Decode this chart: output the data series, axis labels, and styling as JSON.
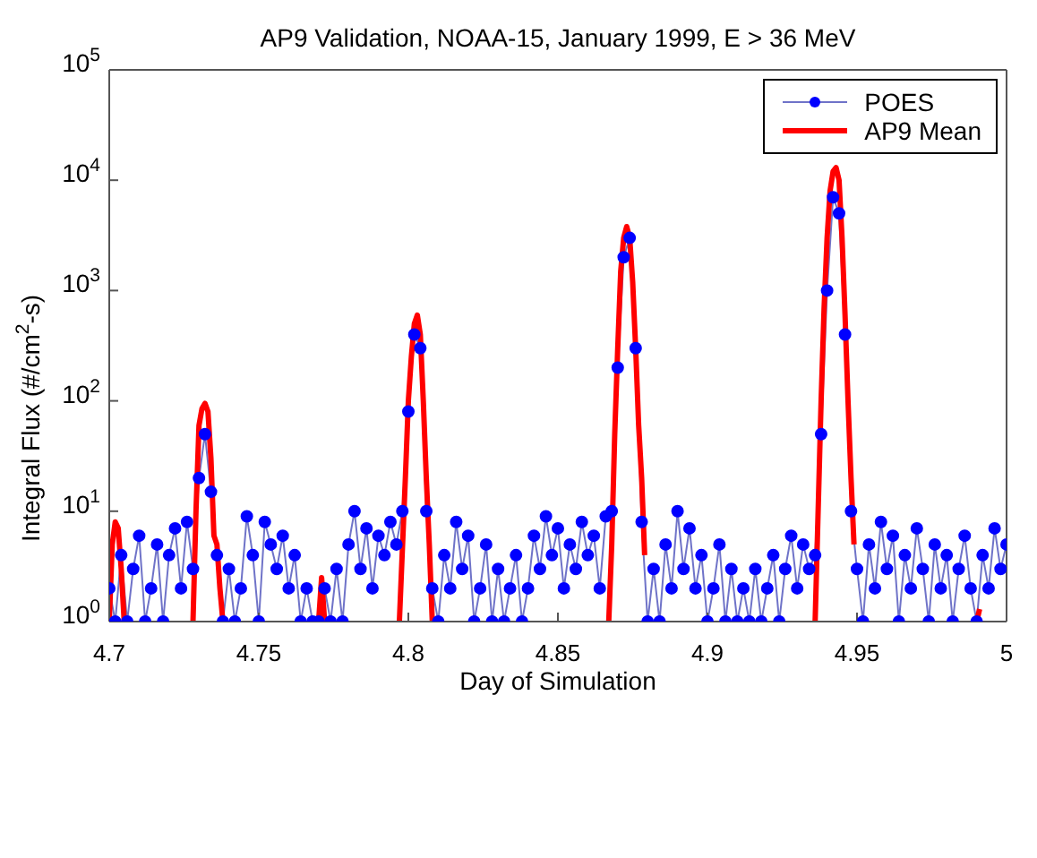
{
  "chart_data": {
    "type": "line",
    "title": "AP9 Validation, NOAA-15, January 1999, E > 36 MeV",
    "xlabel": "Day of Simulation",
    "ylabel": "Integral Flux (#/cm$^{2}$-s)",
    "xlim": [
      4.7,
      5
    ],
    "xticks": [
      4.7,
      4.75,
      4.8,
      4.85,
      4.9,
      4.95,
      5
    ],
    "ylim": [
      1,
      100000
    ],
    "yticks": [
      {
        "value": 1,
        "label": "10$^{0}$"
      },
      {
        "value": 10,
        "label": "10$^{1}$"
      },
      {
        "value": 100,
        "label": "10$^{2}$"
      },
      {
        "value": 1000,
        "label": "10$^{3}$"
      },
      {
        "value": 10000,
        "label": "10$^{4}$"
      },
      {
        "value": 100000,
        "label": "10$^{5}$"
      }
    ],
    "log": "y",
    "legend": "top right",
    "series": [
      {
        "name": "POES",
        "color": "#0000ff",
        "marker": "circle",
        "x": [
          4.7,
          4.702,
          4.704,
          4.706,
          4.708,
          4.71,
          4.712,
          4.714,
          4.716,
          4.718,
          4.72,
          4.722,
          4.724,
          4.726,
          4.728,
          4.73,
          4.732,
          4.734,
          4.736,
          4.738,
          4.74,
          4.742,
          4.744,
          4.746,
          4.748,
          4.75,
          4.752,
          4.754,
          4.756,
          4.758,
          4.76,
          4.762,
          4.764,
          4.766,
          4.768,
          4.77,
          4.772,
          4.774,
          4.776,
          4.778,
          4.78,
          4.782,
          4.784,
          4.786,
          4.788,
          4.79,
          4.792,
          4.794,
          4.796,
          4.798,
          4.8,
          4.802,
          4.804,
          4.806,
          4.808,
          4.81,
          4.812,
          4.814,
          4.816,
          4.818,
          4.82,
          4.822,
          4.824,
          4.826,
          4.828,
          4.83,
          4.832,
          4.834,
          4.836,
          4.838,
          4.84,
          4.842,
          4.844,
          4.846,
          4.848,
          4.85,
          4.852,
          4.854,
          4.856,
          4.858,
          4.86,
          4.862,
          4.864,
          4.866,
          4.868,
          4.87,
          4.872,
          4.874,
          4.876,
          4.878,
          4.88,
          4.882,
          4.884,
          4.886,
          4.888,
          4.89,
          4.892,
          4.894,
          4.896,
          4.898,
          4.9,
          4.902,
          4.904,
          4.906,
          4.908,
          4.91,
          4.912,
          4.914,
          4.916,
          4.918,
          4.92,
          4.922,
          4.924,
          4.926,
          4.928,
          4.93,
          4.932,
          4.934,
          4.936,
          4.938,
          4.94,
          4.942,
          4.944,
          4.946,
          4.948,
          4.95,
          4.952,
          4.954,
          4.956,
          4.958,
          4.96,
          4.962,
          4.964,
          4.966,
          4.968,
          4.97,
          4.972,
          4.974,
          4.976,
          4.978,
          4.98,
          4.982,
          4.984,
          4.986,
          4.988,
          4.99,
          4.992,
          4.994,
          4.996,
          4.998,
          5.0
        ],
        "values": [
          2,
          1,
          4,
          1,
          3,
          6,
          1,
          2,
          5,
          1,
          4,
          7,
          2,
          8,
          3,
          20,
          50,
          15,
          4,
          1,
          3,
          1,
          2,
          9,
          4,
          1,
          8,
          5,
          3,
          6,
          2,
          4,
          1,
          2,
          1,
          1,
          2,
          1,
          3,
          1,
          5,
          10,
          3,
          7,
          2,
          6,
          4,
          8,
          5,
          10,
          80,
          400,
          300,
          10,
          2,
          1,
          4,
          2,
          8,
          3,
          6,
          1,
          2,
          5,
          1,
          3,
          1,
          2,
          4,
          1,
          2,
          6,
          3,
          9,
          4,
          7,
          2,
          5,
          3,
          8,
          4,
          6,
          2,
          9,
          10,
          200,
          2000,
          3000,
          300,
          8,
          1,
          3,
          1,
          5,
          2,
          10,
          3,
          7,
          2,
          4,
          1,
          2,
          5,
          1,
          3,
          1,
          2,
          1,
          3,
          1,
          2,
          4,
          1,
          3,
          6,
          2,
          5,
          3,
          4,
          50,
          1000,
          7000,
          5000,
          400,
          10,
          3,
          1,
          5,
          2,
          8,
          3,
          6,
          1,
          4,
          2,
          7,
          3,
          1,
          5,
          2,
          4,
          1,
          3,
          6,
          2,
          1,
          4,
          2,
          7,
          3,
          5
        ]
      },
      {
        "name": "AP9 Mean",
        "color": "#ff0000",
        "marker": "none",
        "x": [
          4.7,
          4.701,
          4.702,
          4.703,
          4.704,
          4.705,
          4.706,
          4.728,
          4.729,
          4.73,
          4.731,
          4.732,
          4.733,
          4.734,
          4.735,
          4.736,
          4.737,
          4.738,
          4.739,
          4.77,
          4.771,
          4.772,
          4.773,
          4.797,
          4.799,
          4.8,
          4.801,
          4.802,
          4.803,
          4.804,
          4.805,
          4.806,
          4.807,
          4.808,
          4.809,
          4.867,
          4.868,
          4.869,
          4.87,
          4.871,
          4.872,
          4.873,
          4.874,
          4.875,
          4.876,
          4.877,
          4.878,
          4.879,
          4.88,
          4.936,
          4.937,
          4.938,
          4.939,
          4.94,
          4.941,
          4.942,
          4.943,
          4.944,
          4.945,
          4.946,
          4.947,
          4.948,
          4.949,
          4.95,
          4.99,
          4.991
        ],
        "values": [
          1,
          5,
          8,
          7,
          3,
          1,
          null,
          1,
          10,
          60,
          85,
          95,
          80,
          30,
          6,
          5,
          2,
          1,
          null,
          1,
          2.5,
          1,
          null,
          1,
          20,
          100,
          250,
          500,
          600,
          400,
          100,
          20,
          5,
          1,
          null,
          1,
          5,
          50,
          300,
          1500,
          3000,
          3800,
          3000,
          1200,
          300,
          60,
          20,
          4,
          null,
          1,
          10,
          100,
          700,
          3000,
          8000,
          12000,
          13000,
          10000,
          3000,
          600,
          100,
          20,
          5,
          null,
          1,
          1.3
        ]
      }
    ]
  }
}
